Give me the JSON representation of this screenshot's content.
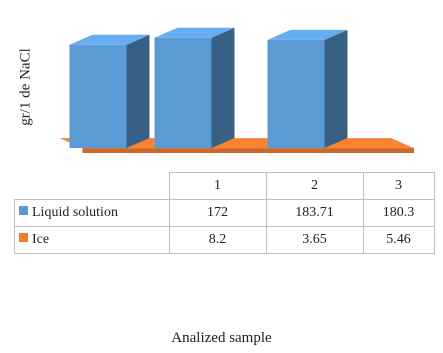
{
  "chart_data": {
    "type": "bar",
    "categories": [
      "1",
      "2",
      "3"
    ],
    "series": [
      {
        "name": "Liquid solution",
        "values": [
          172,
          183.71,
          180.3
        ],
        "color": "#5b9bd5"
      },
      {
        "name": "Ice",
        "values": [
          8.2,
          3.65,
          5.46
        ],
        "color": "#ed7d31"
      }
    ],
    "ylabel": "gr/1 de NaCl",
    "xlabel": "Analized sample",
    "table_values": [
      [
        "172",
        "183.71",
        "180.3"
      ],
      [
        "8.2",
        "3.65",
        "5.46"
      ]
    ],
    "grid": false,
    "legend": "data table"
  }
}
